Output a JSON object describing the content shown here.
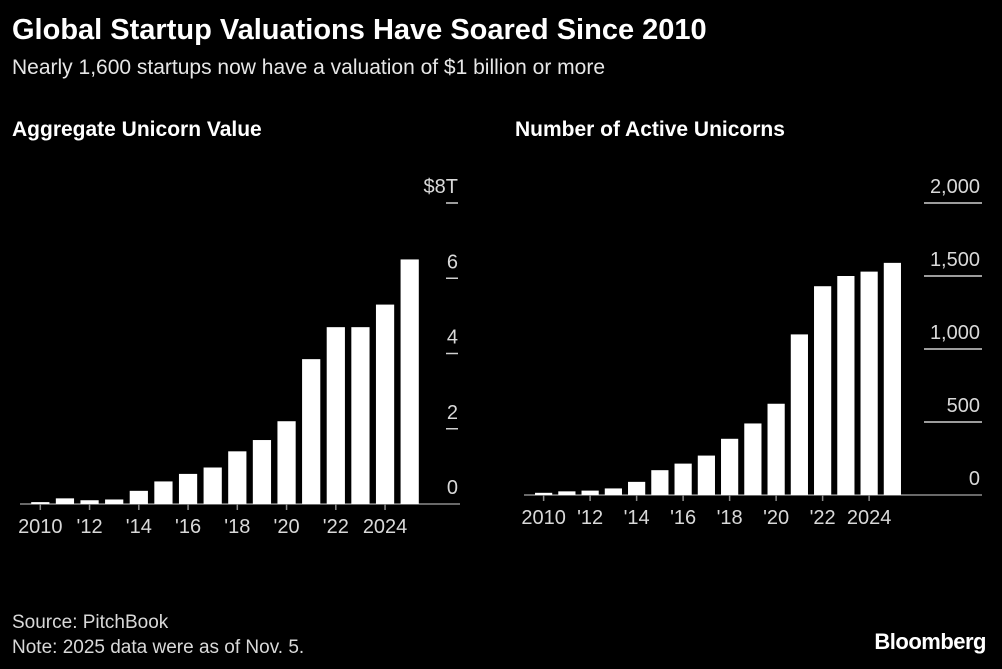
{
  "header": {
    "title": "Global Startup Valuations Have Soared Since 2010",
    "subtitle": "Nearly 1,600 startups now have a valuation of $1 billion or more"
  },
  "chart_data": [
    {
      "type": "bar",
      "title": "Aggregate Unicorn Value",
      "categories": [
        "2010",
        "2011",
        "2012",
        "2013",
        "2014",
        "2015",
        "2016",
        "2017",
        "2018",
        "2019",
        "2020",
        "2021",
        "2022",
        "2023",
        "2024",
        "2025"
      ],
      "values": [
        0.05,
        0.15,
        0.1,
        0.12,
        0.35,
        0.6,
        0.8,
        0.97,
        1.4,
        1.7,
        2.2,
        3.85,
        4.7,
        4.7,
        5.3,
        6.5
      ],
      "x_tick_labels": [
        "2010",
        "'12",
        "'14",
        "'16",
        "'18",
        "'20",
        "'22",
        "2024"
      ],
      "y_ticks": [
        0,
        2,
        4,
        6,
        8
      ],
      "y_tick_labels": [
        "0",
        "2",
        "4",
        "6",
        "$8T"
      ],
      "ylim": [
        0,
        8
      ],
      "xlabel": "",
      "ylabel": "",
      "color": "#ffffff"
    },
    {
      "type": "bar",
      "title": "Number of Active Unicorns",
      "categories": [
        "2010",
        "2011",
        "2012",
        "2013",
        "2014",
        "2015",
        "2016",
        "2017",
        "2018",
        "2019",
        "2020",
        "2021",
        "2022",
        "2023",
        "2024",
        "2025"
      ],
      "values": [
        15,
        25,
        30,
        45,
        90,
        170,
        215,
        270,
        385,
        490,
        625,
        1100,
        1430,
        1500,
        1530,
        1590
      ],
      "x_tick_labels": [
        "2010",
        "'12",
        "'14",
        "'16",
        "'18",
        "'20",
        "'22",
        "2024"
      ],
      "y_ticks": [
        0,
        500,
        1000,
        1500,
        2000
      ],
      "y_tick_labels": [
        "0",
        "500",
        "1,000",
        "1,500",
        "2,000"
      ],
      "ylim": [
        0,
        2000
      ],
      "xlabel": "",
      "ylabel": "",
      "color": "#ffffff"
    }
  ],
  "footer": {
    "source": "Source: PitchBook",
    "note": "Note: 2025 data were as of Nov. 5.",
    "brand": "Bloomberg"
  }
}
